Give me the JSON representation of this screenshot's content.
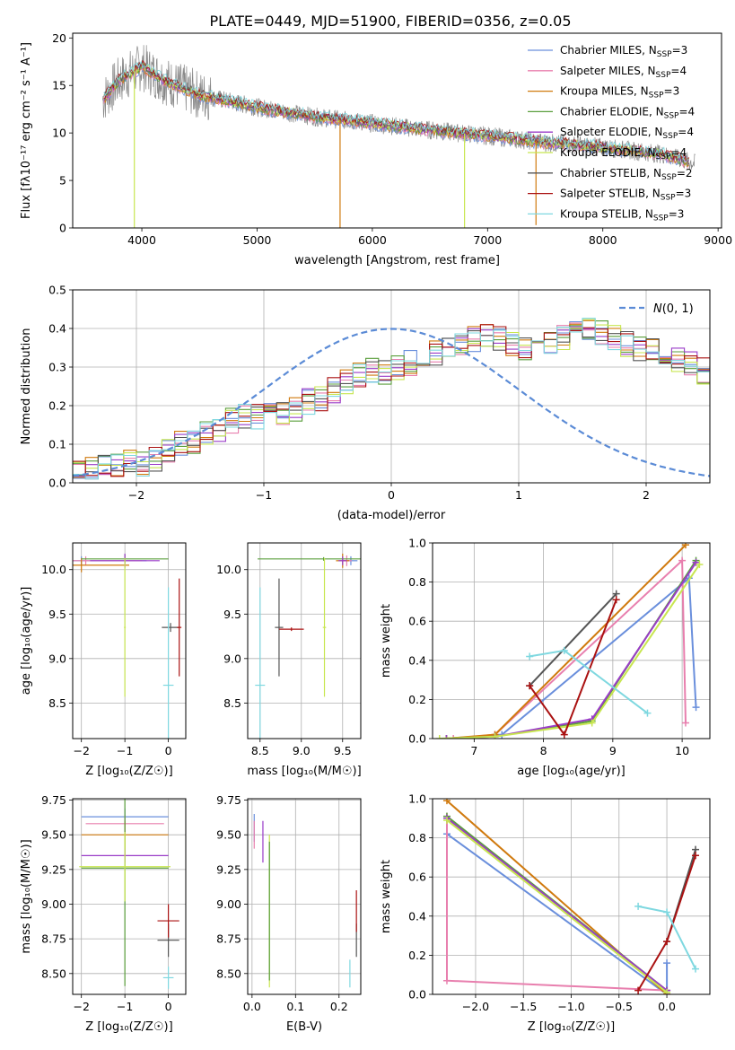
{
  "figure": {
    "title": "PLATE=0449, MJD=51900, FIBERID=0356, z=0.05"
  },
  "series_styles": [
    {
      "name": "Chabrier MILES",
      "nssp": "3",
      "color": "#6a8fdc"
    },
    {
      "name": "Salpeter MILES",
      "nssp": "4",
      "color": "#e87fae"
    },
    {
      "name": "Kroupa MILES",
      "nssp": "3",
      "color": "#d07a0e"
    },
    {
      "name": "Chabrier ELODIE",
      "nssp": "4",
      "color": "#5a9e3c"
    },
    {
      "name": "Salpeter ELODIE",
      "nssp": "4",
      "color": "#9a3cc8"
    },
    {
      "name": "Kroupa ELODIE",
      "nssp": "4",
      "color": "#c8e650"
    },
    {
      "name": "Chabrier STELIB",
      "nssp": "2",
      "color": "#555555"
    },
    {
      "name": "Salpeter STELIB",
      "nssp": "3",
      "color": "#aa1111"
    },
    {
      "name": "Kroupa STELIB",
      "nssp": "3",
      "color": "#7fd8e0"
    }
  ],
  "chart_data": [
    {
      "id": "spectrum",
      "type": "line",
      "title": "PLATE=0449, MJD=51900, FIBERID=0356, z=0.05",
      "xlabel": "wavelength [Angstrom, rest frame]",
      "ylabel": "Flux [fλ10⁻¹⁷ erg cm⁻² s⁻¹ A⁻¹]",
      "xlim": [
        3400,
        9030
      ],
      "ylim": [
        0,
        20.5
      ],
      "xticks": [
        4000,
        5000,
        6000,
        7000,
        8000,
        9000
      ],
      "yticks": [
        0,
        5,
        10,
        15,
        20
      ],
      "data_color": "#888888",
      "data_x": [
        3660,
        3800,
        4000,
        4200,
        4500,
        5000,
        5500,
        6000,
        6500,
        7000,
        7500,
        8000,
        8500,
        8800
      ],
      "data_y": [
        13.5,
        15.5,
        17.0,
        15.5,
        14.0,
        12.7,
        11.7,
        11.0,
        10.3,
        9.7,
        9.0,
        8.5,
        7.8,
        6.8
      ],
      "dips": [
        {
          "x": 3935,
          "to": 0
        },
        {
          "x": 5720,
          "to": 0
        },
        {
          "x": 6800,
          "to": 0
        },
        {
          "x": 7420,
          "to": 0.3
        }
      ],
      "legend_position": "upper right"
    },
    {
      "id": "residuals",
      "type": "bar",
      "xlabel": "(data-model)/error",
      "ylabel": "Normed distribution",
      "xlim": [
        -2.5,
        2.5
      ],
      "ylim": [
        0,
        0.5
      ],
      "xticks": [
        -2,
        -1,
        0,
        1,
        2
      ],
      "yticks": [
        0,
        0.1,
        0.2,
        0.3,
        0.4,
        0.5
      ],
      "grid": true,
      "gaussian_label": "𝒩(0,1)",
      "gaussian_mu": 0,
      "gaussian_sigma": 1,
      "bin_width": 0.1,
      "bin_start": -2.5,
      "base_hist": [
        0.03,
        0.04,
        0.04,
        0.05,
        0.05,
        0.05,
        0.06,
        0.08,
        0.1,
        0.11,
        0.13,
        0.14,
        0.16,
        0.17,
        0.17,
        0.18,
        0.18,
        0.19,
        0.21,
        0.22,
        0.24,
        0.26,
        0.28,
        0.29,
        0.29,
        0.3,
        0.31,
        0.33,
        0.34,
        0.35,
        0.36,
        0.37,
        0.38,
        0.37,
        0.36,
        0.35,
        0.36,
        0.37,
        0.38,
        0.39,
        0.4,
        0.39,
        0.38,
        0.36,
        0.35,
        0.34,
        0.33,
        0.32,
        0.31,
        0.29,
        0.27,
        0.25,
        0.24,
        0.22,
        0.2,
        0.18,
        0.17,
        0.15,
        0.14,
        0.12,
        0.11,
        0.1,
        0.09,
        0.08,
        0.07,
        0.06,
        0.06,
        0.05,
        0.05,
        0.04,
        0.04,
        0.04,
        0.03,
        0.03,
        0.03,
        0.03,
        0.03,
        0.02,
        0.02,
        0.02,
        0.02,
        0.02,
        0.02,
        0.02,
        0.02,
        0.02,
        0.02,
        0.02,
        0.02,
        0.02,
        0.02,
        0.02,
        0.02,
        0.02,
        0.02,
        0.02,
        0.02,
        0.02,
        0.02,
        0.02
      ]
    },
    {
      "id": "age-vs-Z",
      "type": "scatter",
      "xlabel": "Z [log₁₀(Z/Z☉)]",
      "ylabel": "age  [log₁₀(age/yr)]",
      "xlim": [
        -2.2,
        0.4
      ],
      "ylim": [
        8.1,
        10.3
      ],
      "xticks": [
        -2,
        -1,
        0
      ],
      "yticks": [
        8.5,
        9.0,
        9.5,
        10.0
      ],
      "points": [
        {
          "s": 0,
          "x": -2.0,
          "y": 10.1,
          "xerr": 1.5,
          "yerr": 0.05
        },
        {
          "s": 1,
          "x": -1.9,
          "y": 10.1,
          "xerr": 1.3,
          "yerr": 0.05
        },
        {
          "s": 2,
          "x": -2.0,
          "y": 10.05,
          "xerr": 1.1,
          "yerr": 0.08
        },
        {
          "s": 3,
          "x": -1.0,
          "y": 10.12,
          "xerr": 1.0,
          "yerr": 0.05
        },
        {
          "s": 4,
          "x": -1.0,
          "y": 10.1,
          "xerr": 0.8,
          "yerr": 0.08
        },
        {
          "s": 5,
          "x": -1.0,
          "y": 9.35,
          "xerr": 0.02,
          "yerr": 0.78
        },
        {
          "s": 6,
          "x": 0.05,
          "y": 9.35,
          "xerr": 0.2,
          "yerr": 0.05
        },
        {
          "s": 7,
          "x": 0.25,
          "y": 9.35,
          "xerr": 0.05,
          "yerr": 0.55
        },
        {
          "s": 8,
          "x": 0.0,
          "y": 8.7,
          "xerr": 0.12,
          "yerr": 1.1
        }
      ]
    },
    {
      "id": "age-vs-mass",
      "type": "scatter",
      "xlabel": "mass [log₁₀(M/M☉)]",
      "xlim": [
        8.35,
        9.72
      ],
      "ylim": [
        8.1,
        10.3
      ],
      "xticks": [
        8.5,
        9.0,
        9.5
      ],
      "yticks": [
        8.5,
        9.0,
        9.5,
        10.0
      ],
      "points": [
        {
          "s": 0,
          "x": 9.6,
          "y": 10.1,
          "xerr": 0.08,
          "yerr": 0.05
        },
        {
          "s": 1,
          "x": 9.55,
          "y": 10.1,
          "xerr": 0.06,
          "yerr": 0.06
        },
        {
          "s": 2,
          "x": 9.5,
          "y": 10.1,
          "xerr": 0.08,
          "yerr": 0.08
        },
        {
          "s": 3,
          "x": 9.27,
          "y": 10.12,
          "xerr": 0.8,
          "yerr": 0.02
        },
        {
          "s": 4,
          "x": 9.5,
          "y": 10.1,
          "xerr": 0.05,
          "yerr": 0.05
        },
        {
          "s": 5,
          "x": 9.28,
          "y": 9.35,
          "xerr": 0.02,
          "yerr": 0.78
        },
        {
          "s": 6,
          "x": 8.73,
          "y": 9.35,
          "xerr": 0.05,
          "yerr": 0.55
        },
        {
          "s": 7,
          "x": 8.88,
          "y": 9.33,
          "xerr": 0.15,
          "yerr": 0.02
        },
        {
          "s": 8,
          "x": 8.5,
          "y": 8.7,
          "xerr": 0.06,
          "yerr": 1.1
        }
      ]
    },
    {
      "id": "weight-vs-age",
      "type": "line",
      "xlabel": "age  [log₁₀(age/yr)]",
      "ylabel": "mass weight",
      "xlim": [
        6.4,
        10.4
      ],
      "ylim": [
        0,
        1.0
      ],
      "xticks": [
        7,
        8,
        9,
        10
      ],
      "yticks": [
        0,
        0.2,
        0.4,
        0.6,
        0.8,
        1.0
      ],
      "lines": [
        {
          "s": 0,
          "x": [
            6.6,
            7.4,
            10.1,
            10.2
          ],
          "y": [
            0.0,
            0.02,
            0.82,
            0.16
          ]
        },
        {
          "s": 1,
          "x": [
            6.7,
            7.3,
            10.0,
            10.05
          ],
          "y": [
            0.0,
            0.02,
            0.91,
            0.08
          ]
        },
        {
          "s": 2,
          "x": [
            6.6,
            7.3,
            10.05
          ],
          "y": [
            0.0,
            0.02,
            0.99
          ]
        },
        {
          "s": 3,
          "x": [
            6.6,
            7.3,
            8.7,
            10.2
          ],
          "y": [
            0.0,
            0.01,
            0.09,
            0.91
          ]
        },
        {
          "s": 4,
          "x": [
            6.6,
            7.3,
            8.7,
            10.2
          ],
          "y": [
            0.0,
            0.01,
            0.1,
            0.9
          ]
        },
        {
          "s": 5,
          "x": [
            6.5,
            7.3,
            8.7,
            10.25
          ],
          "y": [
            0.0,
            0.01,
            0.08,
            0.89
          ]
        },
        {
          "s": 6,
          "x": [
            7.8,
            9.05
          ],
          "y": [
            0.27,
            0.74
          ]
        },
        {
          "s": 7,
          "x": [
            7.8,
            8.3,
            9.05
          ],
          "y": [
            0.27,
            0.02,
            0.71
          ]
        },
        {
          "s": 8,
          "x": [
            7.8,
            8.3,
            9.5
          ],
          "y": [
            0.42,
            0.45,
            0.13
          ]
        }
      ]
    },
    {
      "id": "mass-vs-Z",
      "type": "scatter",
      "xlabel": "Z [log₁₀(Z/Z☉)]",
      "ylabel": "mass [log₁₀(M/M☉)]",
      "xlim": [
        -2.2,
        0.4
      ],
      "ylim": [
        8.35,
        9.76
      ],
      "xticks": [
        -2,
        -1,
        0
      ],
      "yticks": [
        8.5,
        8.75,
        9.0,
        9.25,
        9.5,
        9.75
      ],
      "points": [
        {
          "s": 0,
          "x": -1.0,
          "y": 9.63,
          "xerr": 1.0,
          "yerr": 0.06
        },
        {
          "s": 1,
          "x": -1.0,
          "y": 9.58,
          "xerr": 0.9,
          "yerr": 0.06
        },
        {
          "s": 2,
          "x": -1.0,
          "y": 9.5,
          "xerr": 1.0,
          "yerr": 0.1
        },
        {
          "s": 3,
          "x": -1.0,
          "y": 9.26,
          "xerr": 1.0,
          "yerr": 0.85
        },
        {
          "s": 4,
          "x": -1.0,
          "y": 9.35,
          "xerr": 1.0,
          "yerr": 0.05
        },
        {
          "s": 5,
          "x": -1.0,
          "y": 9.27,
          "xerr": 1.05,
          "yerr": 0.25
        },
        {
          "s": 6,
          "x": 0.0,
          "y": 8.74,
          "xerr": 0.25,
          "yerr": 0.12
        },
        {
          "s": 7,
          "x": 0.0,
          "y": 8.88,
          "xerr": 0.25,
          "yerr": 0.12
        },
        {
          "s": 8,
          "x": 0.0,
          "y": 8.47,
          "xerr": 0.12,
          "yerr": 0.08
        }
      ]
    },
    {
      "id": "mass-vs-ebv",
      "type": "scatter",
      "xlabel": "E(B-V)",
      "xlim": [
        -0.01,
        0.25
      ],
      "ylim": [
        8.35,
        9.76
      ],
      "xticks": [
        0.0,
        0.1,
        0.2
      ],
      "yticks": [
        8.5,
        8.75,
        9.0,
        9.25,
        9.5,
        9.75
      ],
      "points": [
        {
          "s": 0,
          "x": 0.005,
          "y": 9.55,
          "xerr": 0.0,
          "yerr": 0.1
        },
        {
          "s": 1,
          "x": 0.005,
          "y": 9.5,
          "xerr": 0.0,
          "yerr": 0.1
        },
        {
          "s": 4,
          "x": 0.025,
          "y": 9.45,
          "xerr": 0.0,
          "yerr": 0.15
        },
        {
          "s": 5,
          "x": 0.04,
          "y": 8.95,
          "xerr": 0.0,
          "yerr": 0.55
        },
        {
          "s": 3,
          "x": 0.04,
          "y": 8.95,
          "xerr": 0.0,
          "yerr": 0.5
        },
        {
          "s": 8,
          "x": 0.225,
          "y": 8.5,
          "xerr": 0.0,
          "yerr": 0.1
        },
        {
          "s": 6,
          "x": 0.24,
          "y": 8.74,
          "xerr": 0.0,
          "yerr": 0.12
        },
        {
          "s": 7,
          "x": 0.24,
          "y": 8.95,
          "xerr": 0.0,
          "yerr": 0.15
        }
      ]
    },
    {
      "id": "weight-vs-Z",
      "type": "line",
      "xlabel": "Z [log₁₀(Z/Z☉)]",
      "ylabel": "mass weight",
      "xlim": [
        -2.45,
        0.45
      ],
      "ylim": [
        0,
        1.0
      ],
      "xticks": [
        -2.0,
        -1.5,
        -1.0,
        -0.5,
        0.0
      ],
      "yticks": [
        0,
        0.2,
        0.4,
        0.6,
        0.8,
        1.0
      ],
      "lines": [
        {
          "s": 0,
          "x": [
            -2.3,
            0.0,
            0.0
          ],
          "y": [
            0.82,
            0.0,
            0.16
          ]
        },
        {
          "s": 1,
          "x": [
            -2.3,
            -2.3,
            0.0,
            0.0
          ],
          "y": [
            0.91,
            0.07,
            0.02,
            0.0
          ]
        },
        {
          "s": 2,
          "x": [
            -2.3,
            0.0
          ],
          "y": [
            0.99,
            0.0
          ]
        },
        {
          "s": 3,
          "x": [
            -2.3,
            0.0
          ],
          "y": [
            0.91,
            0.02
          ]
        },
        {
          "s": 4,
          "x": [
            -2.3,
            0.0
          ],
          "y": [
            0.9,
            0.02
          ]
        },
        {
          "s": 5,
          "x": [
            -2.3,
            0.0
          ],
          "y": [
            0.89,
            0.01
          ]
        },
        {
          "s": 6,
          "x": [
            0.0,
            0.3
          ],
          "y": [
            0.27,
            0.74
          ]
        },
        {
          "s": 7,
          "x": [
            -0.3,
            0.0,
            0.3
          ],
          "y": [
            0.02,
            0.27,
            0.71
          ]
        },
        {
          "s": 8,
          "x": [
            -0.3,
            0.0,
            0.3
          ],
          "y": [
            0.45,
            0.42,
            0.13
          ]
        }
      ]
    }
  ]
}
